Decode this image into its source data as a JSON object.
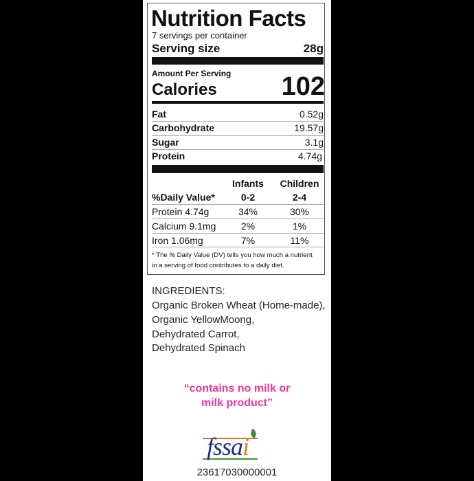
{
  "label": {
    "title": "Nutrition Facts",
    "servings": "7 servings per container",
    "serving_size_label": "Serving size",
    "serving_size_value": "28g",
    "amount_per_serving": "Amount Per Serving",
    "calories_label": "Calories",
    "calories_value": "102",
    "nutrients": [
      {
        "name": "Fat",
        "value": "0.52g"
      },
      {
        "name": "Carbohydrate",
        "value": "19.57g"
      },
      {
        "name": "Sugar",
        "value": "3.1g"
      },
      {
        "name": "Protein",
        "value": "4.74g"
      }
    ],
    "dv_header": {
      "label": "%Daily Value*",
      "col1_top": "Infants",
      "col1_bottom": "0-2",
      "col2_top": "Children",
      "col2_bottom": "2-4"
    },
    "dv_rows": [
      {
        "name": "Protein 4.74g",
        "infants": "34%",
        "children": "30%"
      },
      {
        "name": "Calcium 9.1mg",
        "infants": "2%",
        "children": "1%"
      },
      {
        "name": "Iron 1.06mg",
        "infants": "7%",
        "children": "11%"
      }
    ],
    "footnote_line1": "* The % Daily Value (DV) tells you how much a nutrient",
    "footnote_line2": "in a serving of food contributes to a daily diet."
  },
  "ingredients": {
    "heading": "INGREDIENTS:",
    "lines": [
      "Organic Broken Wheat (Home-made),",
      "Organic YellowMoong,",
      "Dehydrated Carrot,",
      "Dehydrated Spinach"
    ]
  },
  "claim": {
    "line1": "“contains no milk or",
    "line2": "milk product”",
    "color": "#f0359e"
  },
  "fssai": {
    "logo_text": "fssai",
    "license_number": "23617030000001"
  }
}
